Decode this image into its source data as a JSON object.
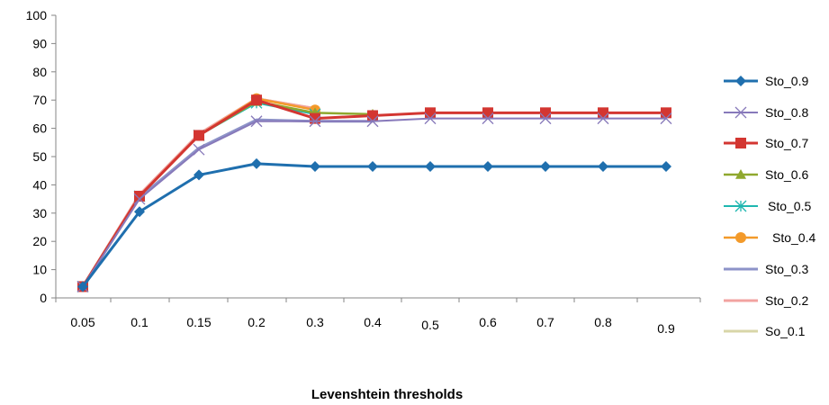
{
  "chart_data": {
    "type": "line",
    "title": "",
    "xlabel": "Levenshtein thresholds",
    "ylabel": "",
    "ylim": [
      0,
      100
    ],
    "y_ticks": [
      0,
      10,
      20,
      30,
      40,
      50,
      60,
      70,
      80,
      90,
      100
    ],
    "categories": [
      "0.05",
      "0.1",
      "0.15",
      "0.2",
      "0.3",
      "0.4",
      "0.5",
      "0.6",
      "0.7",
      "0.8",
      "0.9"
    ],
    "grid": false,
    "legend_position": "right",
    "series": [
      {
        "name": "Sto_0.9",
        "color": "#1F6FAE",
        "marker": "diamond",
        "values": [
          4,
          30.5,
          43.5,
          47.5,
          46.5,
          46.5,
          46.5,
          46.5,
          46.5,
          46.5,
          46.5
        ]
      },
      {
        "name": "Sto_0.8",
        "color": "#8779BA",
        "marker": "x",
        "values": [
          4,
          35,
          52.5,
          62.5,
          62.5,
          62.5,
          63.5,
          63.5,
          63.5,
          63.5,
          63.5
        ]
      },
      {
        "name": "Sto_0.7",
        "color": "#D33631",
        "marker": "square",
        "values": [
          4,
          36,
          57.5,
          70,
          63.5,
          64.5,
          65.5,
          65.5,
          65.5,
          65.5,
          65.5
        ]
      },
      {
        "name": "Sto_0.6",
        "color": "#8FA82E",
        "marker": "triangle",
        "values": [
          4,
          36,
          57.5,
          69.5,
          65.5,
          65,
          null,
          null,
          null,
          null,
          null
        ]
      },
      {
        "name": "Sto_0.5",
        "color": "#1FB7B0",
        "marker": "star",
        "values": [
          4,
          36,
          57.5,
          69,
          65,
          null,
          null,
          null,
          null,
          null,
          null
        ]
      },
      {
        "name": "Sto_0.4",
        "color": "#F39A2A",
        "marker": "circle",
        "values": [
          4,
          36,
          57.5,
          70.5,
          66.5,
          null,
          null,
          null,
          null,
          null,
          null
        ]
      },
      {
        "name": "Sto_0.3",
        "color": "#8D93C8",
        "marker": "none",
        "values": [
          4,
          35.5,
          53,
          63,
          62.5,
          62.5,
          null,
          null,
          null,
          null,
          null
        ]
      },
      {
        "name": "Sto_0.2",
        "color": "#F2A3A0",
        "marker": "none",
        "values": [
          4,
          36.5,
          58,
          70.5,
          67,
          null,
          null,
          null,
          null,
          null,
          null
        ]
      },
      {
        "name": "So_0.1",
        "color": "#D8D6A8",
        "marker": "none",
        "values": [
          4,
          36.5,
          58,
          70.5,
          67,
          null,
          null,
          null,
          null,
          null,
          null
        ]
      }
    ]
  }
}
